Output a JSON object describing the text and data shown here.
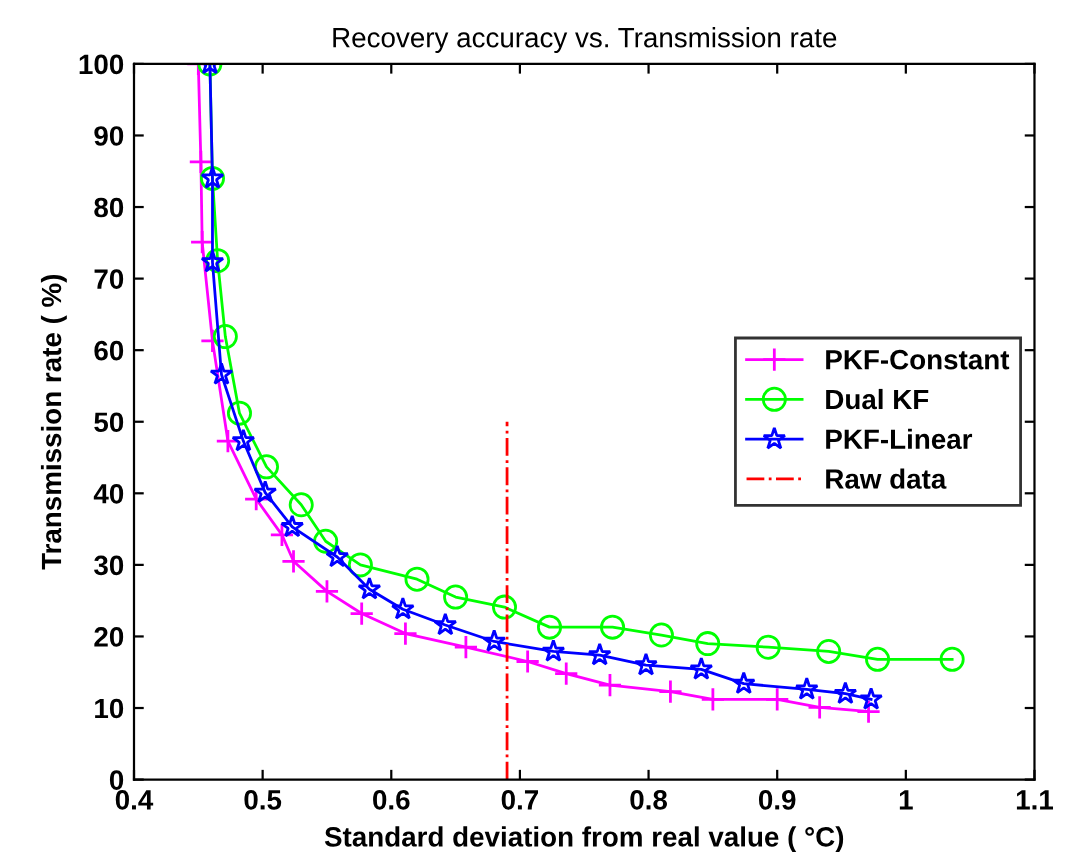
{
  "chart_data": {
    "type": "line",
    "title": "Recovery accuracy vs. Transmission rate",
    "xlabel": "Standard deviation from real value ( °C)",
    "ylabel": "Transmission rate ( %)",
    "xlim": [
      0.4,
      1.1
    ],
    "xticks": [
      0.4,
      0.5,
      0.6,
      0.7,
      0.8,
      0.9,
      1,
      1.1
    ],
    "ylim": [
      0,
      100
    ],
    "yticks": [
      0,
      10,
      20,
      30,
      40,
      50,
      60,
      70,
      80,
      90,
      100
    ],
    "grid": false,
    "legend": "center right",
    "series": [
      {
        "name": "PKF-Constant",
        "color": "#ff00ff",
        "marker": "cross",
        "line_style": "solid",
        "x": [
          0.45,
          0.452,
          0.453,
          0.461,
          0.473,
          0.495,
          0.515,
          0.524,
          0.55,
          0.577,
          0.611,
          0.658,
          0.706,
          0.736,
          0.77,
          0.817,
          0.85,
          0.9,
          0.933,
          0.971
        ],
        "values": [
          100,
          86.3,
          75.1,
          61.3,
          47.3,
          39.2,
          34.2,
          30.5,
          26.3,
          23.2,
          20.4,
          18.5,
          16.5,
          14.8,
          13.2,
          12.3,
          11.2,
          11.2,
          10.1,
          9.5
        ]
      },
      {
        "name": "Dual KF",
        "color": "#00ff00",
        "marker": "circle",
        "line_style": "solid",
        "x": [
          0.459,
          0.461,
          0.465,
          0.471,
          0.482,
          0.503,
          0.53,
          0.549,
          0.576,
          0.62,
          0.65,
          0.688,
          0.723,
          0.772,
          0.81,
          0.846,
          0.893,
          0.94,
          0.978,
          1.036
        ],
        "values": [
          100,
          84.0,
          72.5,
          61.9,
          51.2,
          43.7,
          38.4,
          33.3,
          30.0,
          28.0,
          25.5,
          24.1,
          21.3,
          21.3,
          20.2,
          19.0,
          18.5,
          17.9,
          16.8,
          16.8
        ]
      },
      {
        "name": "PKF-Linear",
        "color": "#0000ff",
        "marker": "star",
        "line_style": "solid",
        "x": [
          0.459,
          0.461,
          0.461,
          0.468,
          0.485,
          0.502,
          0.523,
          0.558,
          0.583,
          0.609,
          0.642,
          0.68,
          0.726,
          0.762,
          0.798,
          0.841,
          0.874,
          0.923,
          0.953,
          0.973
        ],
        "values": [
          100,
          84.0,
          72.3,
          56.6,
          47.3,
          40.1,
          35.3,
          31.1,
          26.6,
          23.8,
          21.6,
          19.3,
          17.9,
          17.4,
          16.0,
          15.4,
          13.4,
          12.6,
          12.0,
          11.2
        ]
      },
      {
        "name": "Raw data",
        "color": "#ff0000",
        "marker": "none",
        "line_style": "dashdot",
        "x": [
          0.69,
          0.69
        ],
        "values": [
          0,
          50
        ]
      }
    ]
  }
}
